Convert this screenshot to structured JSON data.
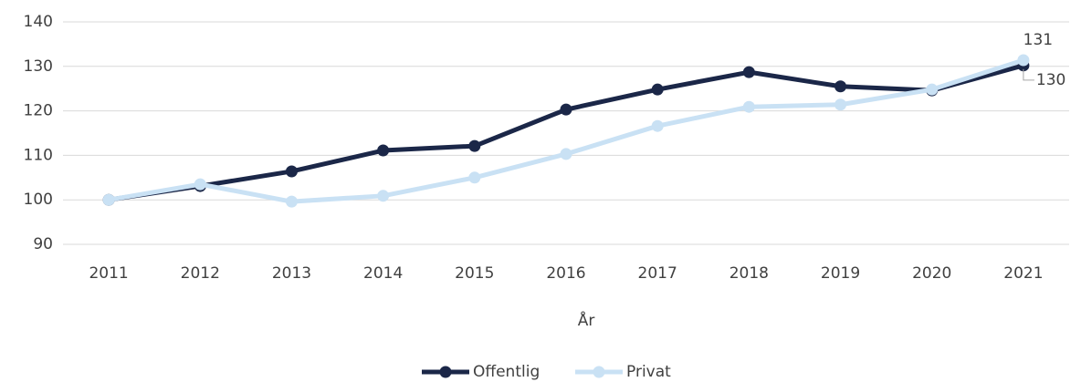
{
  "chart_data": {
    "type": "line",
    "x_label": "År",
    "categories": [
      "2011",
      "2012",
      "2013",
      "2014",
      "2015",
      "2016",
      "2017",
      "2018",
      "2019",
      "2020",
      "2021"
    ],
    "series": [
      {
        "name": "Offentlig",
        "color": "#1b2748",
        "values": [
          100,
          103.1,
          106.4,
          111.1,
          112.1,
          120.3,
          124.8,
          128.7,
          125.5,
          124.6,
          130.2
        ],
        "value_labels": [
          null,
          null,
          null,
          null,
          null,
          null,
          null,
          null,
          null,
          null,
          "130"
        ]
      },
      {
        "name": "Privat",
        "color": "#c9e1f4",
        "values": [
          100,
          103.5,
          99.6,
          100.9,
          105,
          110.3,
          116.6,
          120.9,
          121.4,
          124.8,
          131.4
        ],
        "value_labels": [
          null,
          null,
          null,
          null,
          null,
          null,
          null,
          null,
          null,
          null,
          "131"
        ]
      }
    ],
    "ylim": [
      90,
      140
    ],
    "yticks": [
      90,
      100,
      110,
      120,
      130,
      140
    ],
    "grid": true,
    "legend": "bottom"
  }
}
